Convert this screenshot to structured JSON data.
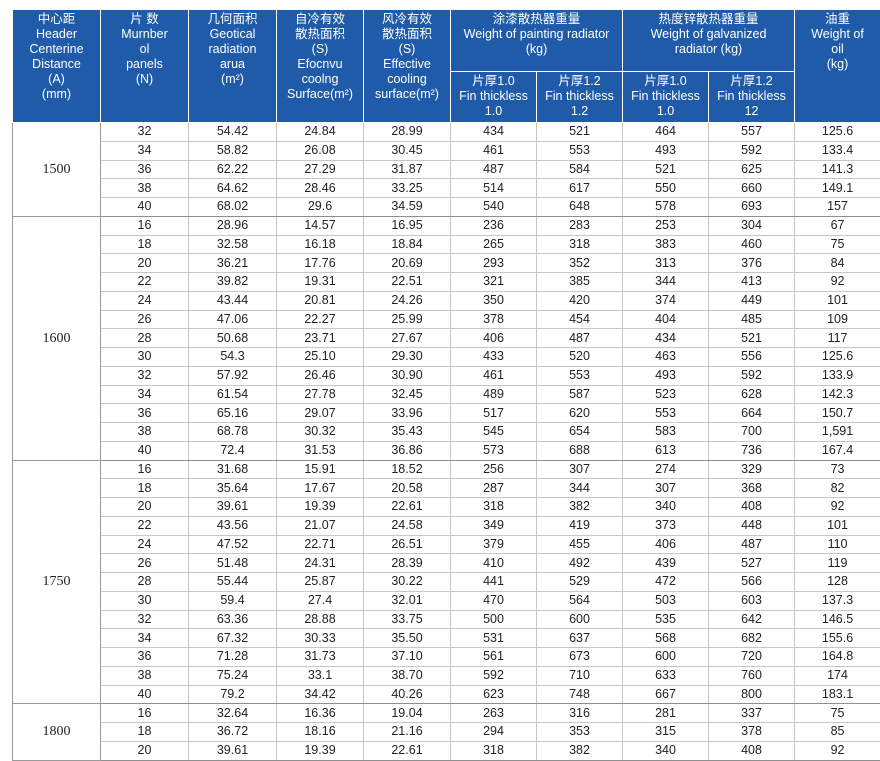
{
  "headers": {
    "distance": [
      "中心距",
      "Header",
      "Centerine",
      "Distance",
      "(A)",
      "(mm)"
    ],
    "panels": [
      "片 数",
      "Murnber",
      "ol",
      "panels",
      "(N)"
    ],
    "geo_area": [
      "几何面积",
      "Geotical",
      "radiation",
      "arua",
      "(m²)"
    ],
    "self_cool": [
      "自冷有效",
      "散热面积",
      "(S)",
      "Efocnvu",
      "coolng",
      "Surface(m²)"
    ],
    "air_cool": [
      "风冷有效",
      "散热面积",
      "(S)",
      "Effective",
      "cooling",
      "surface(m²)"
    ],
    "painting": [
      "涂漆散热器重量",
      "Weight of painting radiator",
      "(kg)"
    ],
    "galvanized": [
      "热度锌散热器重量",
      "Weight of galvanized",
      "radiator (kg)"
    ],
    "oil": [
      "油重",
      "Weight of",
      "oil",
      "(kg)"
    ],
    "paint_fin_10": [
      "片厚1.0",
      "Fin thickless",
      "1.0"
    ],
    "paint_fin_12": [
      "片厚1.2",
      "Fin thickless",
      "1.2"
    ],
    "galv_fin_10": [
      "片厚1.0",
      "Fin thickless",
      "1.0"
    ],
    "galv_fin_12": [
      "片厚1.2",
      "Fin thickless",
      "12"
    ]
  },
  "groups": [
    {
      "distance": "1500",
      "rows": [
        [
          "32",
          "54.42",
          "24.84",
          "28.99",
          "434",
          "521",
          "464",
          "557",
          "125.6"
        ],
        [
          "34",
          "58.82",
          "26.08",
          "30.45",
          "461",
          "553",
          "493",
          "592",
          "133.4"
        ],
        [
          "36",
          "62.22",
          "27.29",
          "31.87",
          "487",
          "584",
          "521",
          "625",
          "141.3"
        ],
        [
          "38",
          "64.62",
          "28.46",
          "33.25",
          "514",
          "617",
          "550",
          "660",
          "149.1"
        ],
        [
          "40",
          "68.02",
          "29.6",
          "34.59",
          "540",
          "648",
          "578",
          "693",
          "157"
        ]
      ]
    },
    {
      "distance": "1600",
      "rows": [
        [
          "16",
          "28.96",
          "14.57",
          "16.95",
          "236",
          "283",
          "253",
          "304",
          "67"
        ],
        [
          "18",
          "32.58",
          "16.18",
          "18.84",
          "265",
          "318",
          "383",
          "460",
          "75"
        ],
        [
          "20",
          "36.21",
          "17.76",
          "20.69",
          "293",
          "352",
          "313",
          "376",
          "84"
        ],
        [
          "22",
          "39.82",
          "19.31",
          "22.51",
          "321",
          "385",
          "344",
          "413",
          "92"
        ],
        [
          "24",
          "43.44",
          "20.81",
          "24.26",
          "350",
          "420",
          "374",
          "449",
          "101"
        ],
        [
          "26",
          "47.06",
          "22.27",
          "25.99",
          "378",
          "454",
          "404",
          "485",
          "109"
        ],
        [
          "28",
          "50.68",
          "23.71",
          "27.67",
          "406",
          "487",
          "434",
          "521",
          "117"
        ],
        [
          "30",
          "54.3",
          "25.10",
          "29.30",
          "433",
          "520",
          "463",
          "556",
          "125.6"
        ],
        [
          "32",
          "57.92",
          "26.46",
          "30.90",
          "461",
          "553",
          "493",
          "592",
          "133.9"
        ],
        [
          "34",
          "61.54",
          "27.78",
          "32.45",
          "489",
          "587",
          "523",
          "628",
          "142.3"
        ],
        [
          "36",
          "65.16",
          "29.07",
          "33.96",
          "517",
          "620",
          "553",
          "664",
          "150.7"
        ],
        [
          "38",
          "68.78",
          "30.32",
          "35.43",
          "545",
          "654",
          "583",
          "700",
          "1,591"
        ],
        [
          "40",
          "72.4",
          "31.53",
          "36.86",
          "573",
          "688",
          "613",
          "736",
          "167.4"
        ]
      ]
    },
    {
      "distance": "1750",
      "rows": [
        [
          "16",
          "31.68",
          "15.91",
          "18.52",
          "256",
          "307",
          "274",
          "329",
          "73"
        ],
        [
          "18",
          "35.64",
          "17.67",
          "20.58",
          "287",
          "344",
          "307",
          "368",
          "82"
        ],
        [
          "20",
          "39.61",
          "19.39",
          "22.61",
          "318",
          "382",
          "340",
          "408",
          "92"
        ],
        [
          "22",
          "43.56",
          "21.07",
          "24.58",
          "349",
          "419",
          "373",
          "448",
          "101"
        ],
        [
          "24",
          "47.52",
          "22.71",
          "26.51",
          "379",
          "455",
          "406",
          "487",
          "110"
        ],
        [
          "26",
          "51.48",
          "24.31",
          "28.39",
          "410",
          "492",
          "439",
          "527",
          "119"
        ],
        [
          "28",
          "55.44",
          "25.87",
          "30.22",
          "441",
          "529",
          "472",
          "566",
          "128"
        ],
        [
          "30",
          "59.4",
          "27.4",
          "32.01",
          "470",
          "564",
          "503",
          "603",
          "137.3"
        ],
        [
          "32",
          "63.36",
          "28.88",
          "33.75",
          "500",
          "600",
          "535",
          "642",
          "146.5"
        ],
        [
          "34",
          "67.32",
          "30.33",
          "35.50",
          "531",
          "637",
          "568",
          "682",
          "155.6"
        ],
        [
          "36",
          "71.28",
          "31.73",
          "37.10",
          "561",
          "673",
          "600",
          "720",
          "164.8"
        ],
        [
          "38",
          "75.24",
          "33.1",
          "38.70",
          "592",
          "710",
          "633",
          "760",
          "174"
        ],
        [
          "40",
          "79.2",
          "34.42",
          "40.26",
          "623",
          "748",
          "667",
          "800",
          "183.1"
        ]
      ]
    },
    {
      "distance": "1800",
      "rows": [
        [
          "16",
          "32.64",
          "16.36",
          "19.04",
          "263",
          "316",
          "281",
          "337",
          "75"
        ],
        [
          "18",
          "36.72",
          "18.16",
          "21.16",
          "294",
          "353",
          "315",
          "378",
          "85"
        ],
        [
          "20",
          "39.61",
          "19.39",
          "22.61",
          "318",
          "382",
          "340",
          "408",
          "92"
        ]
      ]
    }
  ]
}
